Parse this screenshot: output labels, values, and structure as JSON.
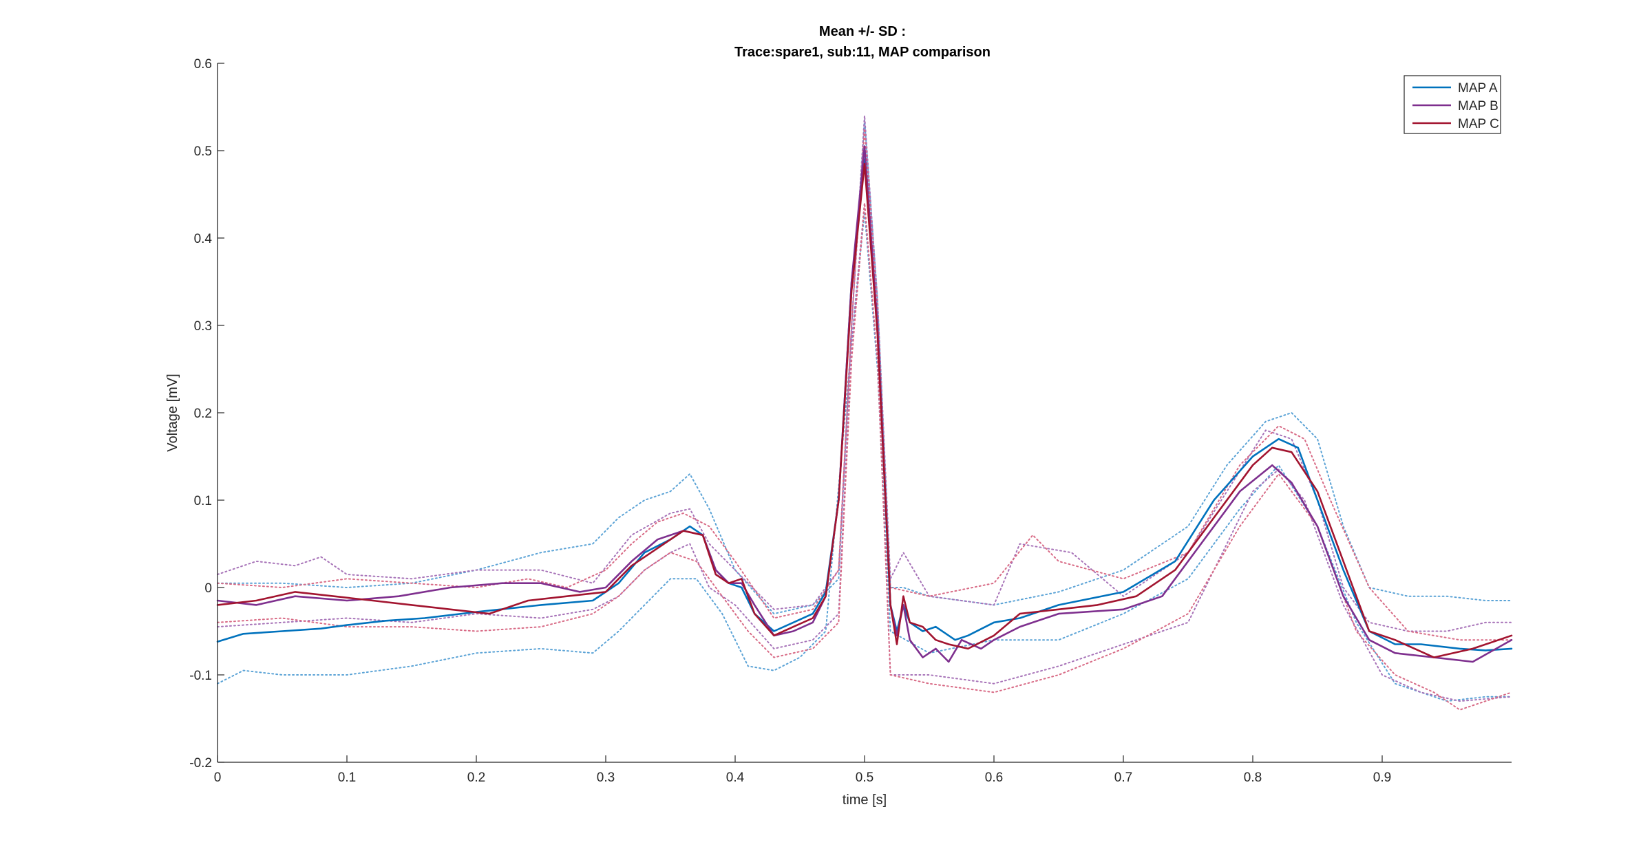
{
  "chart_data": {
    "type": "line",
    "title": [
      "Mean +/- SD :",
      "Trace:spare1, sub:11, MAP comparison"
    ],
    "xlabel": "time [s]",
    "ylabel": "Voltage [mV]",
    "xlim": [
      0,
      1.0
    ],
    "ylim": [
      -0.2,
      0.6
    ],
    "xticks": [
      0,
      0.1,
      0.2,
      0.3,
      0.4,
      0.5,
      0.6,
      0.7,
      0.8,
      0.9
    ],
    "xtick_labels": [
      "0",
      "0.1",
      "0.2",
      "0.3",
      "0.4",
      "0.5",
      "0.6",
      "0.7",
      "0.8",
      "0.9"
    ],
    "yticks": [
      -0.2,
      -0.1,
      0,
      0.1,
      0.2,
      0.3,
      0.4,
      0.5,
      0.6
    ],
    "ytick_labels": [
      "-0.2",
      "-0.1",
      "0",
      "0.1",
      "0.2",
      "0.3",
      "0.4",
      "0.5",
      "0.6"
    ],
    "grid": false,
    "legend_position": "top-right",
    "series": [
      {
        "name": "MAP A",
        "color": "#0072BD",
        "x": [
          0,
          0.02,
          0.05,
          0.08,
          0.1,
          0.13,
          0.16,
          0.2,
          0.25,
          0.29,
          0.31,
          0.33,
          0.35,
          0.365,
          0.375,
          0.385,
          0.395,
          0.405,
          0.415,
          0.43,
          0.445,
          0.46,
          0.47,
          0.48,
          0.49,
          0.5,
          0.51,
          0.52,
          0.525,
          0.53,
          0.535,
          0.545,
          0.555,
          0.57,
          0.58,
          0.6,
          0.62,
          0.65,
          0.7,
          0.74,
          0.77,
          0.8,
          0.82,
          0.835,
          0.85,
          0.87,
          0.89,
          0.91,
          0.93,
          0.96,
          0.98,
          1.0
        ],
        "y": [
          -0.062,
          -0.053,
          -0.05,
          -0.047,
          -0.043,
          -0.038,
          -0.035,
          -0.028,
          -0.02,
          -0.015,
          0.005,
          0.04,
          0.055,
          0.07,
          0.06,
          0.02,
          0.005,
          0.0,
          -0.03,
          -0.05,
          -0.04,
          -0.03,
          -0.005,
          0.1,
          0.35,
          0.49,
          0.3,
          -0.02,
          -0.05,
          -0.02,
          -0.04,
          -0.05,
          -0.045,
          -0.06,
          -0.055,
          -0.04,
          -0.035,
          -0.02,
          -0.005,
          0.03,
          0.1,
          0.15,
          0.17,
          0.16,
          0.1,
          0.02,
          -0.05,
          -0.065,
          -0.065,
          -0.07,
          -0.072,
          -0.07
        ]
      },
      {
        "name": "MAP B",
        "color": "#7E2F8E",
        "x": [
          0,
          0.03,
          0.06,
          0.1,
          0.14,
          0.18,
          0.22,
          0.25,
          0.28,
          0.3,
          0.32,
          0.34,
          0.36,
          0.375,
          0.385,
          0.395,
          0.405,
          0.415,
          0.43,
          0.445,
          0.46,
          0.47,
          0.48,
          0.49,
          0.5,
          0.51,
          0.52,
          0.525,
          0.53,
          0.535,
          0.545,
          0.555,
          0.565,
          0.575,
          0.59,
          0.6,
          0.62,
          0.65,
          0.7,
          0.73,
          0.76,
          0.79,
          0.815,
          0.83,
          0.85,
          0.87,
          0.89,
          0.91,
          0.94,
          0.97,
          1.0
        ],
        "y": [
          -0.015,
          -0.02,
          -0.01,
          -0.015,
          -0.01,
          0.0,
          0.005,
          0.005,
          -0.005,
          0.0,
          0.03,
          0.055,
          0.065,
          0.06,
          0.02,
          0.005,
          0.005,
          -0.02,
          -0.055,
          -0.05,
          -0.04,
          -0.01,
          0.1,
          0.35,
          0.505,
          0.3,
          -0.02,
          -0.055,
          -0.02,
          -0.06,
          -0.08,
          -0.07,
          -0.085,
          -0.06,
          -0.07,
          -0.06,
          -0.045,
          -0.03,
          -0.025,
          -0.01,
          0.05,
          0.11,
          0.14,
          0.12,
          0.07,
          -0.01,
          -0.06,
          -0.075,
          -0.08,
          -0.085,
          -0.06
        ]
      },
      {
        "name": "MAP C",
        "color": "#A2142F",
        "x": [
          0,
          0.03,
          0.06,
          0.09,
          0.12,
          0.15,
          0.18,
          0.21,
          0.24,
          0.27,
          0.3,
          0.32,
          0.34,
          0.36,
          0.375,
          0.385,
          0.395,
          0.405,
          0.415,
          0.43,
          0.445,
          0.46,
          0.47,
          0.48,
          0.49,
          0.5,
          0.51,
          0.52,
          0.525,
          0.53,
          0.535,
          0.545,
          0.555,
          0.565,
          0.58,
          0.6,
          0.62,
          0.65,
          0.68,
          0.71,
          0.74,
          0.77,
          0.8,
          0.815,
          0.83,
          0.85,
          0.87,
          0.89,
          0.91,
          0.94,
          0.97,
          1.0
        ],
        "y": [
          -0.02,
          -0.015,
          -0.005,
          -0.01,
          -0.015,
          -0.02,
          -0.025,
          -0.03,
          -0.015,
          -0.01,
          -0.005,
          0.025,
          0.045,
          0.065,
          0.06,
          0.015,
          0.005,
          0.01,
          -0.03,
          -0.055,
          -0.045,
          -0.035,
          -0.01,
          0.1,
          0.34,
          0.485,
          0.29,
          -0.02,
          -0.065,
          -0.01,
          -0.04,
          -0.045,
          -0.06,
          -0.065,
          -0.07,
          -0.055,
          -0.03,
          -0.025,
          -0.02,
          -0.01,
          0.02,
          0.08,
          0.14,
          0.16,
          0.155,
          0.11,
          0.03,
          -0.05,
          -0.06,
          -0.08,
          -0.07,
          -0.055
        ]
      },
      {
        "name": "",
        "role": "MAP A +SD",
        "style": "dotted",
        "color": "#5BA3D6",
        "x": [
          0,
          0.05,
          0.1,
          0.15,
          0.2,
          0.25,
          0.29,
          0.31,
          0.33,
          0.35,
          0.365,
          0.38,
          0.4,
          0.43,
          0.46,
          0.48,
          0.49,
          0.5,
          0.51,
          0.52,
          0.53,
          0.55,
          0.6,
          0.65,
          0.7,
          0.75,
          0.78,
          0.81,
          0.83,
          0.85,
          0.87,
          0.89,
          0.92,
          0.95,
          0.98,
          1.0
        ],
        "y": [
          0.005,
          0.005,
          0.0,
          0.005,
          0.02,
          0.04,
          0.05,
          0.08,
          0.1,
          0.11,
          0.13,
          0.09,
          0.02,
          -0.03,
          -0.02,
          0.01,
          0.3,
          0.535,
          0.33,
          0.0,
          0.0,
          -0.01,
          -0.02,
          -0.005,
          0.02,
          0.07,
          0.14,
          0.19,
          0.2,
          0.17,
          0.07,
          0.0,
          -0.01,
          -0.01,
          -0.015,
          -0.015
        ]
      },
      {
        "name": "",
        "role": "MAP A -SD",
        "style": "dotted",
        "color": "#5BA3D6",
        "x": [
          0,
          0.02,
          0.05,
          0.1,
          0.15,
          0.2,
          0.25,
          0.29,
          0.31,
          0.33,
          0.35,
          0.37,
          0.39,
          0.41,
          0.43,
          0.45,
          0.47,
          0.49,
          0.5,
          0.51,
          0.52,
          0.55,
          0.6,
          0.65,
          0.7,
          0.75,
          0.79,
          0.82,
          0.85,
          0.88,
          0.91,
          0.95,
          0.98,
          1.0
        ],
        "y": [
          -0.11,
          -0.095,
          -0.1,
          -0.1,
          -0.09,
          -0.075,
          -0.07,
          -0.075,
          -0.05,
          -0.02,
          0.01,
          0.01,
          -0.03,
          -0.09,
          -0.095,
          -0.08,
          -0.05,
          0.28,
          0.43,
          0.25,
          -0.05,
          -0.075,
          -0.06,
          -0.06,
          -0.03,
          0.01,
          0.09,
          0.14,
          0.07,
          -0.04,
          -0.11,
          -0.13,
          -0.125,
          -0.125
        ]
      },
      {
        "name": "",
        "role": "MAP B +SD",
        "style": "dotted",
        "color": "#A773B8",
        "x": [
          0,
          0.03,
          0.06,
          0.08,
          0.1,
          0.15,
          0.2,
          0.25,
          0.29,
          0.32,
          0.35,
          0.365,
          0.38,
          0.4,
          0.43,
          0.46,
          0.48,
          0.49,
          0.5,
          0.51,
          0.52,
          0.53,
          0.55,
          0.6,
          0.62,
          0.66,
          0.7,
          0.75,
          0.78,
          0.81,
          0.83,
          0.85,
          0.87,
          0.89,
          0.92,
          0.95,
          0.98,
          1.0
        ],
        "y": [
          0.015,
          0.03,
          0.025,
          0.035,
          0.015,
          0.01,
          0.02,
          0.02,
          0.005,
          0.06,
          0.085,
          0.09,
          0.05,
          0.02,
          -0.025,
          -0.02,
          0.02,
          0.3,
          0.54,
          0.33,
          0.01,
          0.04,
          -0.01,
          -0.02,
          0.05,
          0.04,
          -0.01,
          0.04,
          0.11,
          0.18,
          0.17,
          0.1,
          0.0,
          -0.04,
          -0.05,
          -0.05,
          -0.04,
          -0.04
        ]
      },
      {
        "name": "",
        "role": "MAP B -SD",
        "style": "dotted",
        "color": "#A773B8",
        "x": [
          0,
          0.05,
          0.1,
          0.15,
          0.2,
          0.25,
          0.29,
          0.31,
          0.33,
          0.35,
          0.365,
          0.38,
          0.4,
          0.43,
          0.46,
          0.48,
          0.49,
          0.5,
          0.51,
          0.52,
          0.55,
          0.6,
          0.65,
          0.7,
          0.75,
          0.8,
          0.82,
          0.84,
          0.87,
          0.9,
          0.93,
          0.96,
          1.0
        ],
        "y": [
          -0.045,
          -0.04,
          -0.035,
          -0.04,
          -0.03,
          -0.035,
          -0.025,
          -0.01,
          0.02,
          0.04,
          0.05,
          0.0,
          -0.02,
          -0.07,
          -0.06,
          -0.03,
          0.28,
          0.44,
          0.26,
          -0.1,
          -0.1,
          -0.11,
          -0.09,
          -0.065,
          -0.04,
          0.11,
          0.135,
          0.1,
          -0.02,
          -0.1,
          -0.12,
          -0.13,
          -0.125
        ]
      },
      {
        "name": "",
        "role": "MAP C +SD",
        "style": "dotted",
        "color": "#D86A85",
        "x": [
          0,
          0.05,
          0.1,
          0.15,
          0.2,
          0.24,
          0.27,
          0.3,
          0.32,
          0.34,
          0.36,
          0.38,
          0.4,
          0.43,
          0.46,
          0.48,
          0.49,
          0.5,
          0.51,
          0.52,
          0.55,
          0.6,
          0.63,
          0.65,
          0.7,
          0.75,
          0.79,
          0.82,
          0.84,
          0.86,
          0.89,
          0.92,
          0.96,
          1.0
        ],
        "y": [
          0.005,
          0.0,
          0.01,
          0.005,
          0.0,
          0.01,
          0.0,
          0.02,
          0.05,
          0.075,
          0.085,
          0.07,
          0.03,
          -0.035,
          -0.025,
          0.02,
          0.3,
          0.525,
          0.32,
          0.0,
          -0.01,
          0.005,
          0.06,
          0.03,
          0.01,
          0.04,
          0.14,
          0.185,
          0.17,
          0.1,
          0.0,
          -0.05,
          -0.06,
          -0.06
        ]
      },
      {
        "name": "",
        "role": "MAP C -SD",
        "style": "dotted",
        "color": "#D86A85",
        "x": [
          0,
          0.05,
          0.1,
          0.15,
          0.2,
          0.25,
          0.29,
          0.31,
          0.33,
          0.35,
          0.37,
          0.39,
          0.41,
          0.43,
          0.46,
          0.48,
          0.49,
          0.5,
          0.51,
          0.52,
          0.55,
          0.6,
          0.65,
          0.7,
          0.75,
          0.79,
          0.82,
          0.85,
          0.88,
          0.91,
          0.94,
          0.96,
          1.0
        ],
        "y": [
          -0.04,
          -0.035,
          -0.045,
          -0.045,
          -0.05,
          -0.045,
          -0.03,
          -0.01,
          0.02,
          0.04,
          0.03,
          -0.01,
          -0.05,
          -0.08,
          -0.07,
          -0.04,
          0.26,
          0.44,
          0.26,
          -0.1,
          -0.11,
          -0.12,
          -0.1,
          -0.07,
          -0.03,
          0.07,
          0.13,
          0.07,
          -0.05,
          -0.1,
          -0.12,
          -0.14,
          -0.12
        ]
      }
    ]
  }
}
